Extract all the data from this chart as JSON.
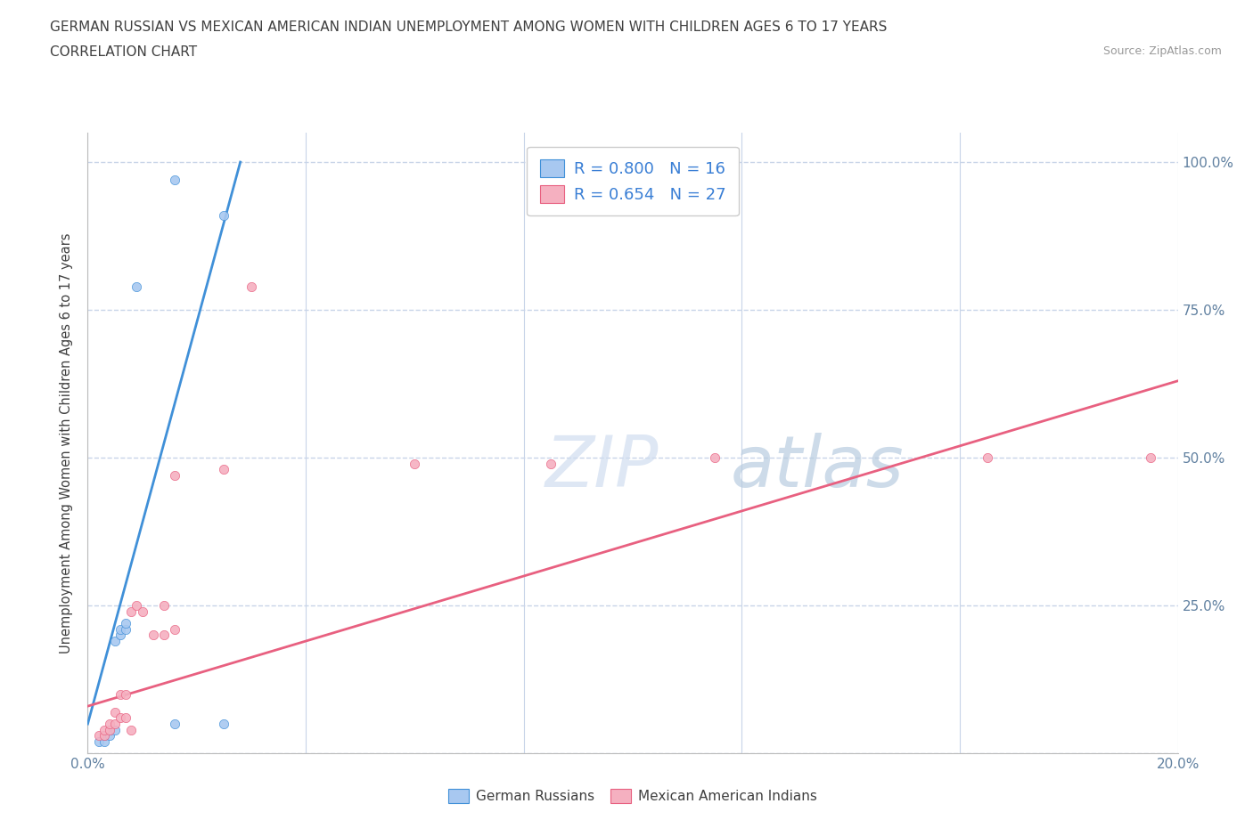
{
  "title_line1": "GERMAN RUSSIAN VS MEXICAN AMERICAN INDIAN UNEMPLOYMENT AMONG WOMEN WITH CHILDREN AGES 6 TO 17 YEARS",
  "title_line2": "CORRELATION CHART",
  "source": "Source: ZipAtlas.com",
  "ylabel": "Unemployment Among Women with Children Ages 6 to 17 years",
  "xlim": [
    0.0,
    0.2
  ],
  "ylim": [
    0.0,
    1.05
  ],
  "yticks": [
    0.0,
    0.25,
    0.5,
    0.75,
    1.0
  ],
  "ytick_labels": [
    "",
    "25.0%",
    "50.0%",
    "75.0%",
    "100.0%"
  ],
  "xticks": [
    0.0,
    0.04,
    0.08,
    0.12,
    0.16,
    0.2
  ],
  "xtick_labels": [
    "0.0%",
    "",
    "",
    "",
    "",
    "20.0%"
  ],
  "blue_color": "#a8c8f0",
  "pink_color": "#f5b0c0",
  "blue_line_color": "#4090d8",
  "pink_line_color": "#e86080",
  "legend_r_blue": "R = 0.800",
  "legend_n_blue": "N = 16",
  "legend_r_pink": "R = 0.654",
  "legend_n_pink": "N = 27",
  "blue_scatter_x": [
    0.002,
    0.003,
    0.003,
    0.004,
    0.004,
    0.005,
    0.005,
    0.006,
    0.006,
    0.007,
    0.007,
    0.009,
    0.016,
    0.016,
    0.025,
    0.025
  ],
  "blue_scatter_y": [
    0.02,
    0.02,
    0.03,
    0.03,
    0.04,
    0.04,
    0.19,
    0.2,
    0.21,
    0.21,
    0.22,
    0.79,
    0.97,
    0.05,
    0.91,
    0.05
  ],
  "pink_scatter_x": [
    0.002,
    0.003,
    0.003,
    0.004,
    0.004,
    0.005,
    0.005,
    0.006,
    0.006,
    0.007,
    0.007,
    0.008,
    0.008,
    0.009,
    0.01,
    0.012,
    0.014,
    0.014,
    0.016,
    0.016,
    0.025,
    0.03,
    0.06,
    0.085,
    0.115,
    0.165,
    0.195
  ],
  "pink_scatter_y": [
    0.03,
    0.03,
    0.04,
    0.04,
    0.05,
    0.05,
    0.07,
    0.06,
    0.1,
    0.06,
    0.1,
    0.04,
    0.24,
    0.25,
    0.24,
    0.2,
    0.2,
    0.25,
    0.47,
    0.21,
    0.48,
    0.79,
    0.49,
    0.49,
    0.5,
    0.5,
    0.5
  ],
  "blue_trend_x": [
    0.0,
    0.028
  ],
  "blue_trend_y": [
    0.05,
    1.0
  ],
  "pink_trend_x": [
    0.0,
    0.2
  ],
  "pink_trend_y": [
    0.08,
    0.63
  ],
  "background_color": "#ffffff",
  "grid_color": "#c8d4e8",
  "title_color": "#404040",
  "axis_color": "#6080a0",
  "watermark_color": "#d8e4f0"
}
